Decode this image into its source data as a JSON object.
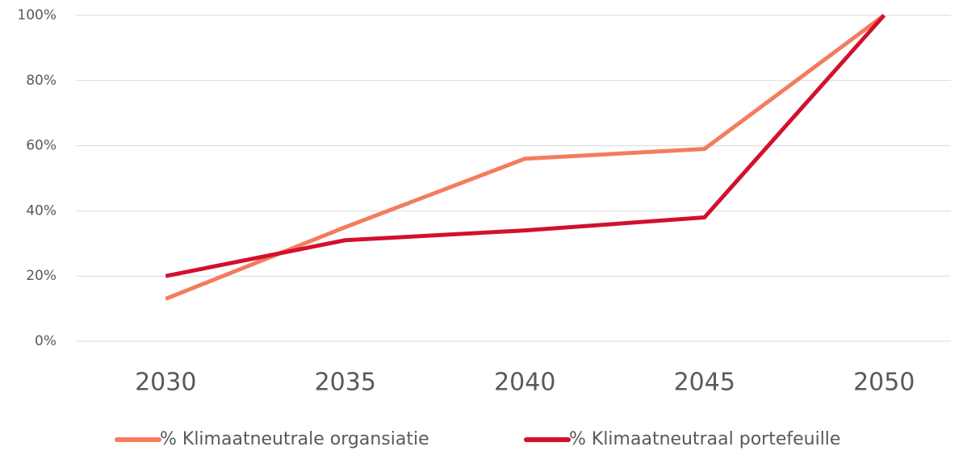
{
  "chart_data": {
    "type": "line",
    "categories": [
      "2030",
      "2035",
      "2040",
      "2045",
      "2050"
    ],
    "series": [
      {
        "name": "% Klimaatneutrale organsiatie",
        "color": "#f47c5e",
        "values": [
          13,
          35,
          56,
          59,
          100
        ]
      },
      {
        "name": "% Klimaatneutraal portefeuille",
        "color": "#d2112d",
        "values": [
          20,
          31,
          34,
          38,
          100
        ]
      }
    ],
    "ylim": [
      0,
      100
    ],
    "yticks": [
      {
        "value": 0,
        "label": "0%"
      },
      {
        "value": 20,
        "label": "20%"
      },
      {
        "value": 40,
        "label": "40%"
      },
      {
        "value": 60,
        "label": "60%"
      },
      {
        "value": 80,
        "label": "80%"
      },
      {
        "value": 100,
        "label": "100%"
      }
    ],
    "grid": true,
    "legend": "bottom"
  }
}
